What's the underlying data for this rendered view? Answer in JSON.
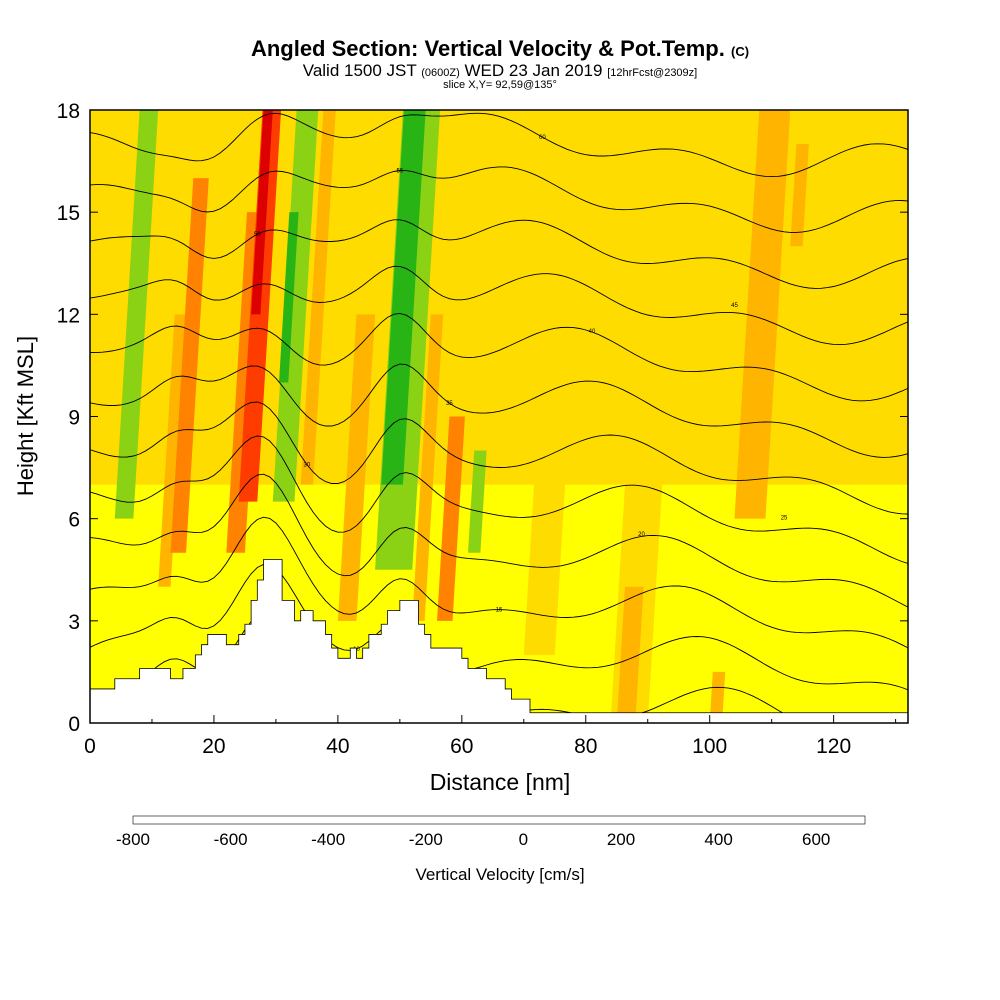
{
  "header": {
    "title": "Angled Section: Vertical Velocity & Pot.Temp.",
    "title_mark": "(C)",
    "valid_label": "Valid 1500 JST",
    "utc": "(0600Z)",
    "date": "WED 23 Jan 2019",
    "forecast": "[12hrFcst@2309z]",
    "slice": "slice X,Y= 92,59@135°"
  },
  "chart_data": {
    "type": "heatmap",
    "xlabel": "Distance [nm]",
    "ylabel": "Height [Kft MSL]",
    "xlim": [
      0,
      132
    ],
    "ylim": [
      0,
      18
    ],
    "x_ticks": [
      0,
      20,
      40,
      60,
      80,
      100,
      120
    ],
    "y_ticks": [
      0,
      3,
      6,
      9,
      12,
      15,
      18
    ],
    "colorbar": {
      "label": "Vertical Velocity [cm/s]",
      "min": -800,
      "max": 700,
      "step": 100,
      "tick_values": [
        -800,
        -600,
        -400,
        -200,
        0,
        200,
        400,
        600
      ],
      "colors": [
        "#0000ff",
        "#0064ff",
        "#00c8ff",
        "#00dcb4",
        "#00b446",
        "#28b414",
        "#8cd214",
        "#ffff00",
        "#ffdc00",
        "#ffb400",
        "#ff8200",
        "#ff3c00",
        "#dc0000",
        "#a00046",
        "#64008c"
      ]
    },
    "terrain_kft": [
      [
        0,
        1.0
      ],
      [
        4,
        1.0
      ],
      [
        4,
        1.3
      ],
      [
        8,
        1.3
      ],
      [
        8,
        1.6
      ],
      [
        13,
        1.6
      ],
      [
        13,
        1.3
      ],
      [
        15,
        1.3
      ],
      [
        15,
        1.6
      ],
      [
        17,
        1.6
      ],
      [
        17,
        2.0
      ],
      [
        18,
        2.0
      ],
      [
        18,
        2.3
      ],
      [
        19,
        2.3
      ],
      [
        19,
        2.6
      ],
      [
        22,
        2.6
      ],
      [
        22,
        2.3
      ],
      [
        24,
        2.3
      ],
      [
        24,
        2.6
      ],
      [
        25,
        2.6
      ],
      [
        25,
        2.9
      ],
      [
        26,
        2.9
      ],
      [
        26,
        3.6
      ],
      [
        27,
        3.6
      ],
      [
        27,
        4.2
      ],
      [
        28,
        4.2
      ],
      [
        28,
        4.8
      ],
      [
        31,
        4.8
      ],
      [
        31,
        3.6
      ],
      [
        33,
        3.6
      ],
      [
        33,
        3.0
      ],
      [
        34,
        3.0
      ],
      [
        34,
        3.3
      ],
      [
        36,
        3.3
      ],
      [
        36,
        3.0
      ],
      [
        38,
        3.0
      ],
      [
        38,
        2.6
      ],
      [
        39,
        2.6
      ],
      [
        39,
        2.2
      ],
      [
        40,
        2.2
      ],
      [
        40,
        1.9
      ],
      [
        42,
        1.9
      ],
      [
        42,
        2.2
      ],
      [
        43,
        2.2
      ],
      [
        43,
        1.9
      ],
      [
        44,
        1.9
      ],
      [
        44,
        2.2
      ],
      [
        45,
        2.2
      ],
      [
        45,
        2.6
      ],
      [
        47,
        2.6
      ],
      [
        47,
        2.9
      ],
      [
        48,
        2.9
      ],
      [
        48,
        3.3
      ],
      [
        50,
        3.3
      ],
      [
        50,
        3.6
      ],
      [
        53,
        3.6
      ],
      [
        53,
        2.9
      ],
      [
        54,
        2.9
      ],
      [
        54,
        2.6
      ],
      [
        55,
        2.6
      ],
      [
        55,
        2.2
      ],
      [
        60,
        2.2
      ],
      [
        60,
        1.9
      ],
      [
        61,
        1.9
      ],
      [
        61,
        1.6
      ],
      [
        64,
        1.6
      ],
      [
        64,
        1.3
      ],
      [
        67,
        1.3
      ],
      [
        67,
        1.0
      ],
      [
        68,
        1.0
      ],
      [
        68,
        0.7
      ],
      [
        71,
        0.7
      ],
      [
        71,
        0.3
      ],
      [
        132,
        0.3
      ]
    ],
    "vv_bands": [
      {
        "x0": 4,
        "x1": 7,
        "v": -150,
        "top": 18,
        "bot": 6
      },
      {
        "x0": 11,
        "x1": 13,
        "v": 150,
        "top": 12,
        "bot": 4
      },
      {
        "x0": 13,
        "x1": 15.5,
        "v": 250,
        "top": 16,
        "bot": 5
      },
      {
        "x0": 22,
        "x1": 25,
        "v": 250,
        "top": 15,
        "bot": 5
      },
      {
        "x0": 24,
        "x1": 27,
        "v": 350,
        "top": 18,
        "bot": 6.5
      },
      {
        "x0": 26,
        "x1": 27.5,
        "v": 450,
        "top": 18,
        "bot": 12
      },
      {
        "x0": 29.5,
        "x1": 33,
        "v": -150,
        "top": 18,
        "bot": 6.5
      },
      {
        "x0": 30.5,
        "x1": 32,
        "v": -250,
        "top": 15,
        "bot": 10
      },
      {
        "x0": 34,
        "x1": 36,
        "v": 150,
        "top": 18,
        "bot": 7
      },
      {
        "x0": 40,
        "x1": 43,
        "v": 150,
        "top": 12,
        "bot": 3
      },
      {
        "x0": 46,
        "x1": 52,
        "v": -150,
        "top": 18,
        "bot": 4.5
      },
      {
        "x0": 47,
        "x1": 50.5,
        "v": -250,
        "top": 18,
        "bot": 7
      },
      {
        "x0": 52,
        "x1": 54,
        "v": 150,
        "top": 12,
        "bot": 3
      },
      {
        "x0": 56,
        "x1": 58.5,
        "v": 250,
        "top": 9,
        "bot": 3
      },
      {
        "x0": 61,
        "x1": 63,
        "v": -150,
        "top": 8,
        "bot": 5
      },
      {
        "x0": 70,
        "x1": 75,
        "v": 50,
        "top": 8,
        "bot": 2
      },
      {
        "x0": 84,
        "x1": 90,
        "v": 50,
        "top": 18,
        "bot": 0
      },
      {
        "x0": 85,
        "x1": 88,
        "v": 150,
        "top": 4,
        "bot": 0
      },
      {
        "x0": 100,
        "x1": 102,
        "v": 150,
        "top": 1.5,
        "bot": 0
      },
      {
        "x0": 104,
        "x1": 109,
        "v": 150,
        "top": 18,
        "bot": 6
      },
      {
        "x0": 113,
        "x1": 115,
        "v": 150,
        "top": 17,
        "bot": 14
      }
    ],
    "theta_levels": [
      5,
      10,
      15,
      20,
      25,
      30,
      35,
      40,
      45,
      50,
      55,
      60
    ],
    "theta_labels": [
      "5",
      "10",
      "15",
      "20",
      "25",
      "30",
      "35",
      "40",
      "45",
      "50",
      "55",
      "60"
    ]
  },
  "colors": {
    "background": "#ffffff",
    "field_base": "#ffdc00",
    "field_low": "#ffff00",
    "contour": "#000000",
    "terrain": "#ffffff"
  }
}
